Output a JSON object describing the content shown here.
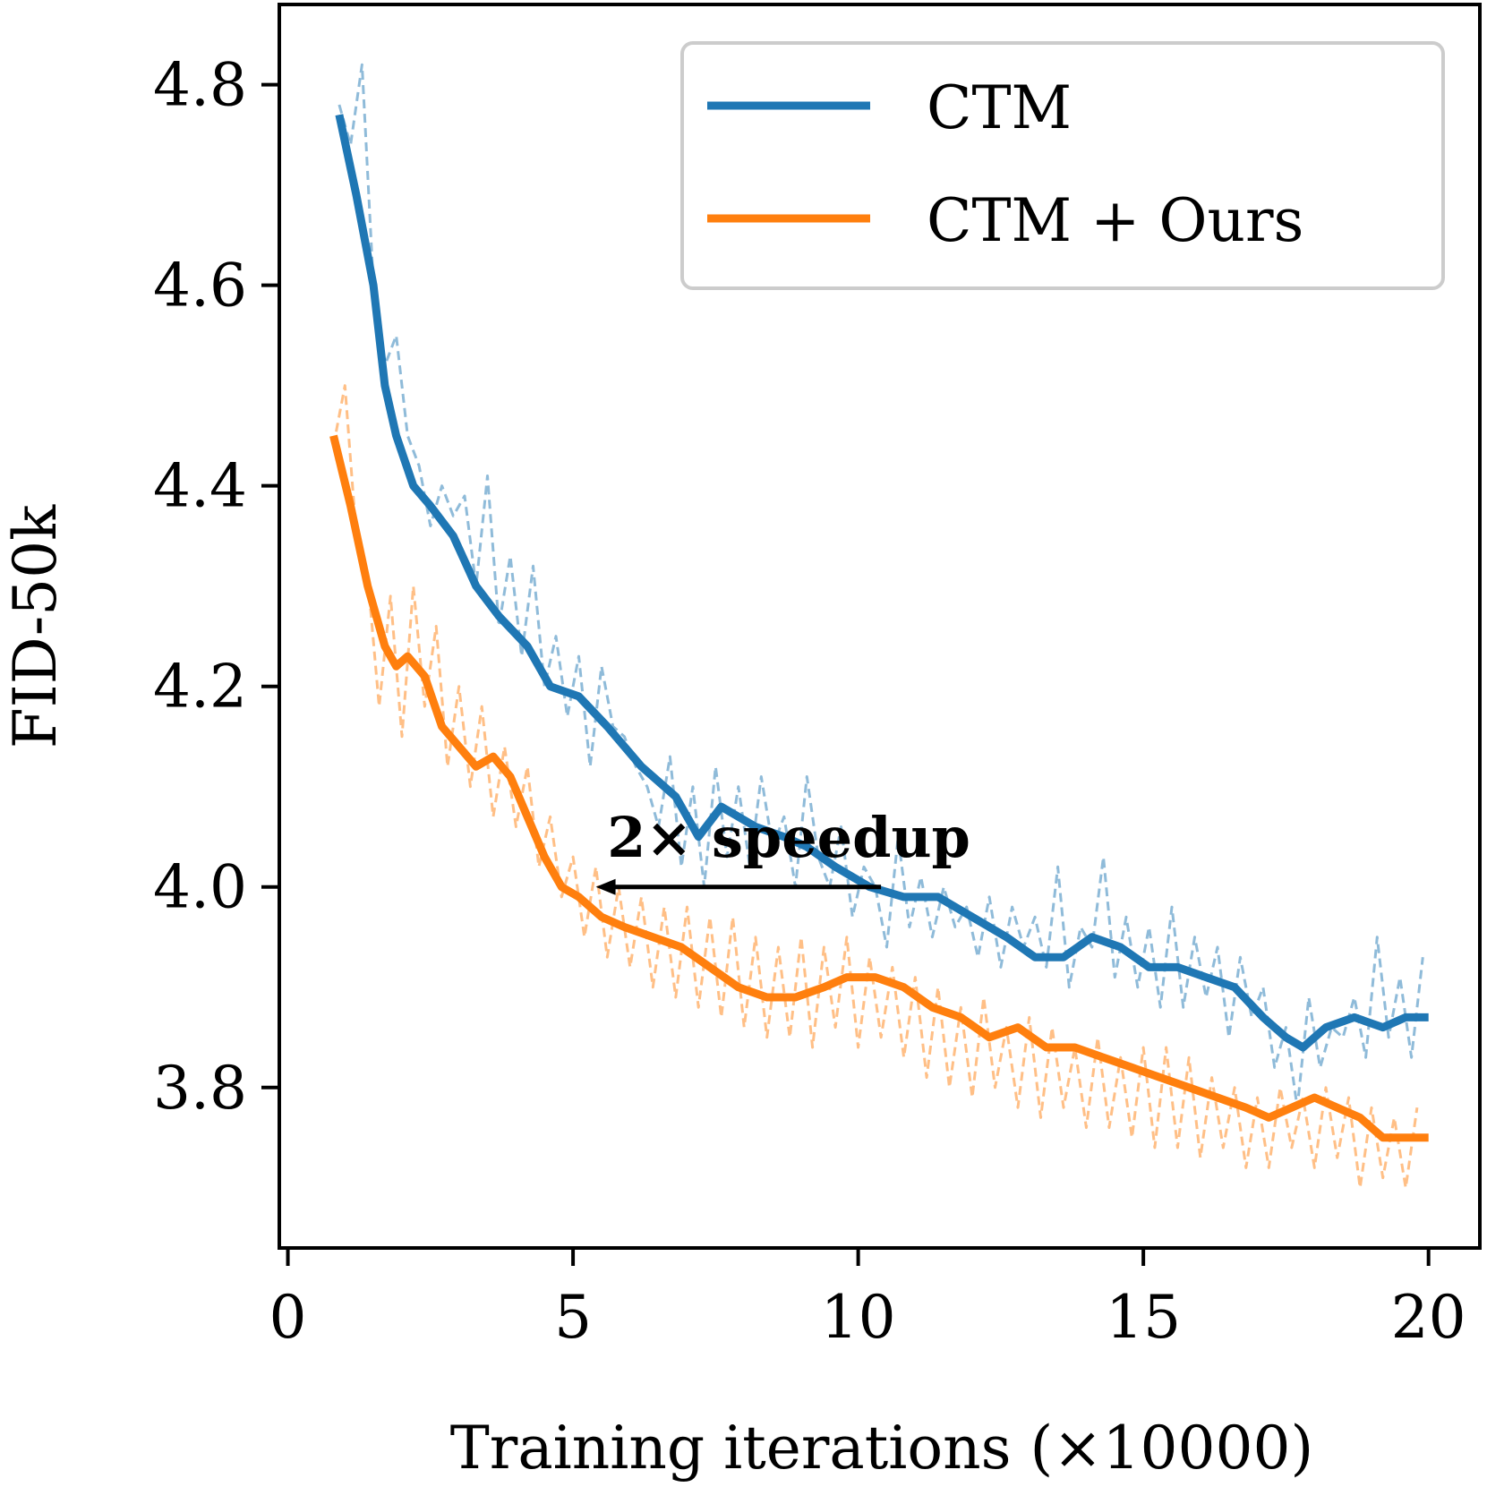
{
  "chart_data": {
    "type": "line",
    "title": "",
    "xlabel": "Training iterations (×10000)",
    "ylabel": "FID-50k",
    "xlim": [
      -0.15,
      20.9
    ],
    "ylim": [
      3.64,
      4.88
    ],
    "xticks": [
      0,
      5,
      10,
      15,
      20
    ],
    "yticks": [
      3.8,
      4.0,
      4.2,
      4.4,
      4.6,
      4.8
    ],
    "xtick_labels": [
      "0",
      "5",
      "10",
      "15",
      "20"
    ],
    "ytick_labels": [
      "3.8",
      "4.0",
      "4.2",
      "4.4",
      "4.6",
      "4.8"
    ],
    "grid": false,
    "legend": {
      "position": "top-right",
      "entries": [
        "CTM",
        "CTM + Ours"
      ]
    },
    "series": [
      {
        "name": "CTM",
        "color": "#1f77b4",
        "smoothed": {
          "x": [
            0.9,
            1.2,
            1.5,
            1.7,
            1.9,
            2.2,
            2.5,
            2.9,
            3.3,
            3.7,
            4.2,
            4.6,
            5.1,
            5.6,
            6.2,
            6.8,
            7.2,
            7.6,
            8.2,
            8.7,
            9.1,
            9.6,
            10.2,
            10.8,
            11.4,
            12.0,
            12.6,
            13.1,
            13.6,
            14.1,
            14.6,
            15.1,
            15.6,
            16.1,
            16.6,
            17.1,
            17.5,
            17.8,
            18.2,
            18.7,
            19.2,
            19.6,
            20.0
          ],
          "y": [
            4.77,
            4.69,
            4.6,
            4.5,
            4.45,
            4.4,
            4.38,
            4.35,
            4.3,
            4.27,
            4.24,
            4.2,
            4.19,
            4.16,
            4.12,
            4.09,
            4.05,
            4.08,
            4.06,
            4.05,
            4.04,
            4.02,
            4.0,
            3.99,
            3.99,
            3.97,
            3.95,
            3.93,
            3.93,
            3.95,
            3.94,
            3.92,
            3.92,
            3.91,
            3.9,
            3.87,
            3.85,
            3.84,
            3.86,
            3.87,
            3.86,
            3.87,
            3.87
          ]
        },
        "raw": {
          "x": [
            0.9,
            1.1,
            1.3,
            1.5,
            1.7,
            1.9,
            2.1,
            2.3,
            2.5,
            2.7,
            2.9,
            3.1,
            3.3,
            3.5,
            3.7,
            3.9,
            4.1,
            4.3,
            4.5,
            4.7,
            4.9,
            5.1,
            5.3,
            5.5,
            5.7,
            5.9,
            6.1,
            6.3,
            6.5,
            6.7,
            6.9,
            7.1,
            7.3,
            7.5,
            7.7,
            7.9,
            8.1,
            8.3,
            8.5,
            8.7,
            8.9,
            9.1,
            9.3,
            9.5,
            9.7,
            9.9,
            10.1,
            10.3,
            10.5,
            10.7,
            10.9,
            11.1,
            11.3,
            11.5,
            11.7,
            11.9,
            12.1,
            12.3,
            12.5,
            12.7,
            12.9,
            13.1,
            13.3,
            13.5,
            13.7,
            13.9,
            14.1,
            14.3,
            14.5,
            14.7,
            14.9,
            15.1,
            15.3,
            15.5,
            15.7,
            15.9,
            16.1,
            16.3,
            16.5,
            16.7,
            16.9,
            17.1,
            17.3,
            17.5,
            17.7,
            17.9,
            18.1,
            18.3,
            18.5,
            18.7,
            18.9,
            19.1,
            19.3,
            19.5,
            19.7,
            19.9
          ],
          "y": [
            4.78,
            4.74,
            4.82,
            4.6,
            4.52,
            4.55,
            4.45,
            4.42,
            4.36,
            4.4,
            4.37,
            4.39,
            4.3,
            4.41,
            4.26,
            4.33,
            4.23,
            4.32,
            4.2,
            4.25,
            4.17,
            4.23,
            4.12,
            4.22,
            4.16,
            4.15,
            4.12,
            4.1,
            4.06,
            4.13,
            4.02,
            4.1,
            4.0,
            4.12,
            4.03,
            4.1,
            4.02,
            4.11,
            4.04,
            4.07,
            4.0,
            4.11,
            4.03,
            4.0,
            4.06,
            3.97,
            4.02,
            4.0,
            3.94,
            4.05,
            3.96,
            4.01,
            3.95,
            4.0,
            3.96,
            3.98,
            3.93,
            3.99,
            3.92,
            3.98,
            3.94,
            3.97,
            3.92,
            4.02,
            3.9,
            3.96,
            3.94,
            4.03,
            3.91,
            3.97,
            3.9,
            3.96,
            3.88,
            3.98,
            3.88,
            3.95,
            3.89,
            3.94,
            3.85,
            3.93,
            3.87,
            3.9,
            3.82,
            3.86,
            3.78,
            3.89,
            3.82,
            3.86,
            3.85,
            3.89,
            3.83,
            3.95,
            3.85,
            3.91,
            3.83,
            3.93
          ]
        }
      },
      {
        "name": "CTM + Ours",
        "color": "#ff7f0e",
        "smoothed": {
          "x": [
            0.8,
            1.1,
            1.4,
            1.7,
            1.9,
            2.1,
            2.4,
            2.7,
            3.0,
            3.3,
            3.6,
            3.9,
            4.2,
            4.5,
            4.8,
            5.1,
            5.5,
            5.9,
            6.4,
            6.9,
            7.4,
            7.9,
            8.4,
            8.9,
            9.4,
            9.8,
            10.3,
            10.8,
            11.3,
            11.8,
            12.3,
            12.8,
            13.3,
            13.8,
            14.3,
            14.8,
            15.3,
            15.8,
            16.3,
            16.8,
            17.2,
            17.6,
            18.0,
            18.4,
            18.8,
            19.2,
            19.6,
            20.0
          ],
          "y": [
            4.45,
            4.38,
            4.3,
            4.24,
            4.22,
            4.23,
            4.21,
            4.16,
            4.14,
            4.12,
            4.13,
            4.11,
            4.07,
            4.03,
            4.0,
            3.99,
            3.97,
            3.96,
            3.95,
            3.94,
            3.92,
            3.9,
            3.89,
            3.89,
            3.9,
            3.91,
            3.91,
            3.9,
            3.88,
            3.87,
            3.85,
            3.86,
            3.84,
            3.84,
            3.83,
            3.82,
            3.81,
            3.8,
            3.79,
            3.78,
            3.77,
            3.78,
            3.79,
            3.78,
            3.77,
            3.75,
            3.75,
            3.75
          ]
        },
        "raw": {
          "x": [
            0.8,
            1.0,
            1.2,
            1.4,
            1.6,
            1.8,
            2.0,
            2.2,
            2.4,
            2.6,
            2.8,
            3.0,
            3.2,
            3.4,
            3.6,
            3.8,
            4.0,
            4.2,
            4.4,
            4.6,
            4.8,
            5.0,
            5.2,
            5.4,
            5.6,
            5.8,
            6.0,
            6.2,
            6.4,
            6.6,
            6.8,
            7.0,
            7.2,
            7.4,
            7.6,
            7.8,
            8.0,
            8.2,
            8.4,
            8.6,
            8.8,
            9.0,
            9.2,
            9.4,
            9.6,
            9.8,
            10.0,
            10.2,
            10.4,
            10.6,
            10.8,
            11.0,
            11.2,
            11.4,
            11.6,
            11.8,
            12.0,
            12.2,
            12.4,
            12.6,
            12.8,
            13.0,
            13.2,
            13.4,
            13.6,
            13.8,
            14.0,
            14.2,
            14.4,
            14.6,
            14.8,
            15.0,
            15.2,
            15.4,
            15.6,
            15.8,
            16.0,
            16.2,
            16.4,
            16.6,
            16.8,
            17.0,
            17.2,
            17.4,
            17.6,
            17.8,
            18.0,
            18.2,
            18.4,
            18.6,
            18.8,
            19.0,
            19.2,
            19.4,
            19.6,
            19.8
          ],
          "y": [
            4.44,
            4.5,
            4.35,
            4.31,
            4.18,
            4.29,
            4.15,
            4.3,
            4.18,
            4.26,
            4.12,
            4.2,
            4.1,
            4.18,
            4.07,
            4.14,
            4.06,
            4.12,
            4.02,
            4.07,
            3.99,
            4.03,
            3.95,
            4.02,
            3.93,
            4.0,
            3.92,
            3.99,
            3.9,
            3.98,
            3.89,
            3.98,
            3.88,
            3.97,
            3.87,
            3.97,
            3.86,
            3.95,
            3.85,
            3.94,
            3.85,
            3.95,
            3.84,
            3.94,
            3.86,
            3.95,
            3.84,
            3.93,
            3.85,
            3.92,
            3.83,
            3.91,
            3.81,
            3.9,
            3.8,
            3.88,
            3.79,
            3.89,
            3.8,
            3.86,
            3.78,
            3.87,
            3.77,
            3.86,
            3.78,
            3.84,
            3.76,
            3.85,
            3.76,
            3.83,
            3.75,
            3.84,
            3.74,
            3.84,
            3.74,
            3.83,
            3.73,
            3.81,
            3.74,
            3.8,
            3.72,
            3.79,
            3.72,
            3.8,
            3.74,
            3.79,
            3.72,
            3.8,
            3.73,
            3.79,
            3.7,
            3.78,
            3.71,
            3.77,
            3.7,
            3.78
          ]
        }
      }
    ],
    "annotations": [
      {
        "text": "2× speedup",
        "arrow_from": [
          10.4,
          4.0
        ],
        "arrow_to": [
          5.4,
          4.0
        ],
        "label_at": [
          5.6,
          4.03
        ]
      }
    ]
  }
}
